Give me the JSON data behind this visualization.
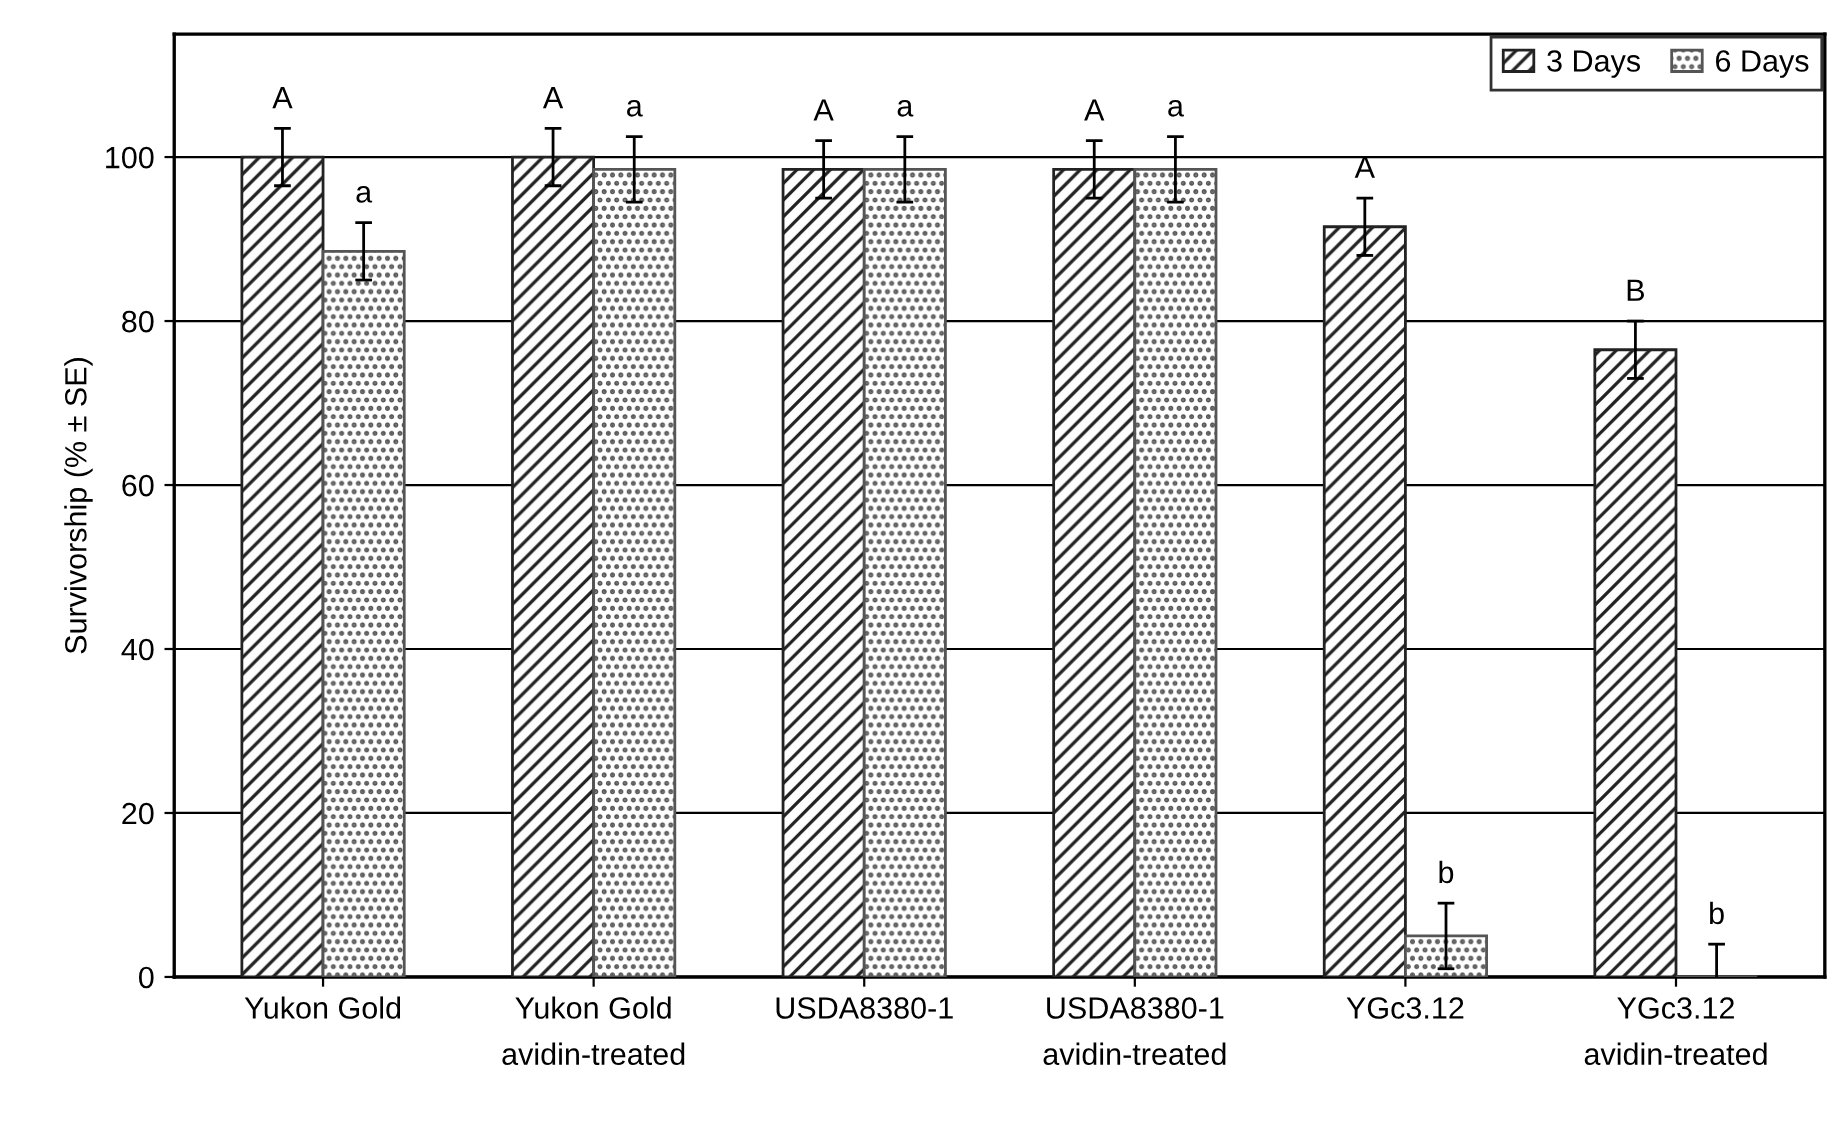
{
  "chart_data": {
    "type": "bar",
    "ylabel": "Survivorship (% ± SE)",
    "categories": [
      "Yukon Gold",
      "Yukon Gold\navidin-treated",
      "USDA8380-1",
      "USDA8380-1\navidin-treated",
      "YGc3.12",
      "YGc3.12\navidin-treated"
    ],
    "series": [
      {
        "name": "3 Days",
        "color": "#222222",
        "values": [
          100,
          100,
          98.5,
          98.5,
          91.5,
          76.5
        ],
        "errors": [
          3.5,
          3.5,
          3.5,
          3.5,
          3.5,
          3.5
        ]
      },
      {
        "name": "6 Days",
        "color": "#555555",
        "values": [
          88.5,
          98.5,
          98.5,
          98.5,
          5,
          0
        ],
        "errors": [
          3.5,
          4,
          4,
          4,
          4,
          4
        ]
      }
    ],
    "annotations": [
      "A",
      "a",
      "A",
      "a",
      "A",
      "a",
      "A",
      "a",
      "A",
      "b",
      "B",
      "b"
    ],
    "ylim": [
      0,
      115
    ],
    "yticks": [
      0,
      20,
      40,
      60,
      80,
      100
    ],
    "grid": "y",
    "legend": "top right"
  }
}
